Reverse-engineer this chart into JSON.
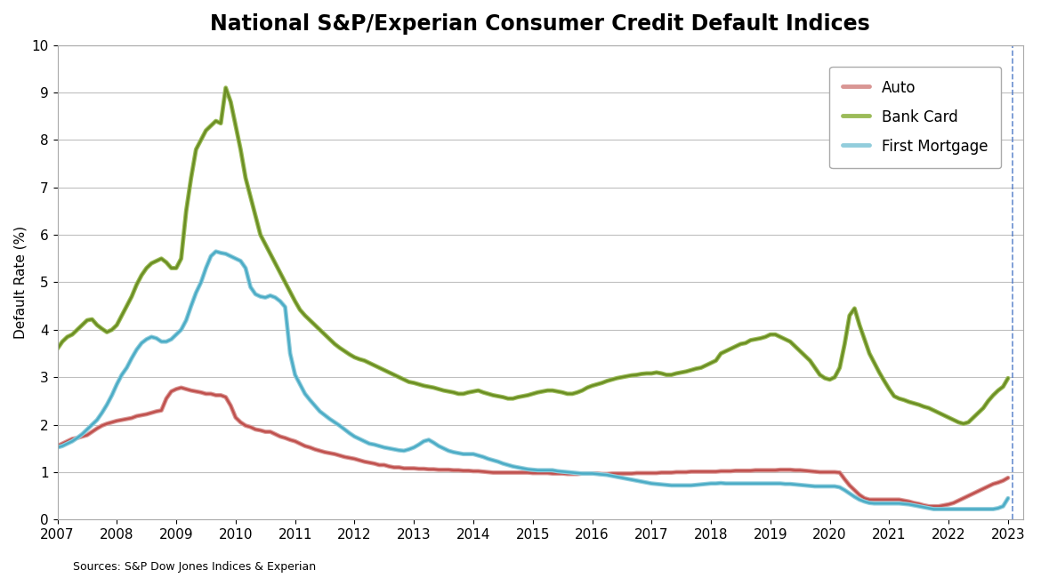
{
  "title": "National S&P/Experian Consumer Credit Default Indices",
  "ylabel": "Default Rate (%)",
  "source": "Sources: S&P Dow Jones Indices & Experian",
  "ylim": [
    0,
    10
  ],
  "yticks": [
    0,
    1,
    2,
    3,
    4,
    5,
    6,
    7,
    8,
    9,
    10
  ],
  "xlim_start": 2007.0,
  "xlim_end": 2023.25,
  "dashed_line_x": 2023.083,
  "auto_color": "#c0504d",
  "auto_color_light": "#d99694",
  "bankcard_color": "#6b8e23",
  "bankcard_color_light": "#9bbb59",
  "mortgage_color": "#4bacc6",
  "mortgage_color_light": "#92cddc",
  "background_color": "#ffffff",
  "plot_bg_color": "#ffffff",
  "grid_color": "#bfbfbf",
  "title_fontsize": 17,
  "label_fontsize": 11,
  "tick_fontsize": 11,
  "auto": {
    "x": [
      2007.0,
      2007.083,
      2007.167,
      2007.25,
      2007.333,
      2007.417,
      2007.5,
      2007.583,
      2007.667,
      2007.75,
      2007.833,
      2007.917,
      2008.0,
      2008.083,
      2008.167,
      2008.25,
      2008.333,
      2008.417,
      2008.5,
      2008.583,
      2008.667,
      2008.75,
      2008.833,
      2008.917,
      2009.0,
      2009.083,
      2009.167,
      2009.25,
      2009.333,
      2009.417,
      2009.5,
      2009.583,
      2009.667,
      2009.75,
      2009.833,
      2009.917,
      2010.0,
      2010.083,
      2010.167,
      2010.25,
      2010.333,
      2010.417,
      2010.5,
      2010.583,
      2010.667,
      2010.75,
      2010.833,
      2010.917,
      2011.0,
      2011.083,
      2011.167,
      2011.25,
      2011.333,
      2011.417,
      2011.5,
      2011.583,
      2011.667,
      2011.75,
      2011.833,
      2011.917,
      2012.0,
      2012.083,
      2012.167,
      2012.25,
      2012.333,
      2012.417,
      2012.5,
      2012.583,
      2012.667,
      2012.75,
      2012.833,
      2012.917,
      2013.0,
      2013.083,
      2013.167,
      2013.25,
      2013.333,
      2013.417,
      2013.5,
      2013.583,
      2013.667,
      2013.75,
      2013.833,
      2013.917,
      2014.0,
      2014.083,
      2014.167,
      2014.25,
      2014.333,
      2014.417,
      2014.5,
      2014.583,
      2014.667,
      2014.75,
      2014.833,
      2014.917,
      2015.0,
      2015.083,
      2015.167,
      2015.25,
      2015.333,
      2015.417,
      2015.5,
      2015.583,
      2015.667,
      2015.75,
      2015.833,
      2015.917,
      2016.0,
      2016.083,
      2016.167,
      2016.25,
      2016.333,
      2016.417,
      2016.5,
      2016.583,
      2016.667,
      2016.75,
      2016.833,
      2016.917,
      2017.0,
      2017.083,
      2017.167,
      2017.25,
      2017.333,
      2017.417,
      2017.5,
      2017.583,
      2017.667,
      2017.75,
      2017.833,
      2017.917,
      2018.0,
      2018.083,
      2018.167,
      2018.25,
      2018.333,
      2018.417,
      2018.5,
      2018.583,
      2018.667,
      2018.75,
      2018.833,
      2018.917,
      2019.0,
      2019.083,
      2019.167,
      2019.25,
      2019.333,
      2019.417,
      2019.5,
      2019.583,
      2019.667,
      2019.75,
      2019.833,
      2019.917,
      2020.0,
      2020.083,
      2020.167,
      2020.25,
      2020.333,
      2020.417,
      2020.5,
      2020.583,
      2020.667,
      2020.75,
      2020.833,
      2020.917,
      2021.0,
      2021.083,
      2021.167,
      2021.25,
      2021.333,
      2021.417,
      2021.5,
      2021.583,
      2021.667,
      2021.75,
      2021.833,
      2021.917,
      2022.0,
      2022.083,
      2022.167,
      2022.25,
      2022.333,
      2022.417,
      2022.5,
      2022.583,
      2022.667,
      2022.75,
      2022.833,
      2022.917,
      2023.0
    ],
    "y": [
      1.55,
      1.6,
      1.65,
      1.7,
      1.72,
      1.75,
      1.78,
      1.85,
      1.92,
      1.98,
      2.02,
      2.05,
      2.08,
      2.1,
      2.12,
      2.14,
      2.18,
      2.2,
      2.22,
      2.25,
      2.28,
      2.3,
      2.55,
      2.7,
      2.75,
      2.78,
      2.75,
      2.72,
      2.7,
      2.68,
      2.65,
      2.65,
      2.62,
      2.62,
      2.58,
      2.4,
      2.15,
      2.05,
      1.98,
      1.95,
      1.9,
      1.88,
      1.85,
      1.85,
      1.8,
      1.75,
      1.72,
      1.68,
      1.65,
      1.6,
      1.55,
      1.52,
      1.48,
      1.45,
      1.42,
      1.4,
      1.38,
      1.35,
      1.32,
      1.3,
      1.28,
      1.25,
      1.22,
      1.2,
      1.18,
      1.15,
      1.15,
      1.12,
      1.1,
      1.1,
      1.08,
      1.08,
      1.08,
      1.07,
      1.07,
      1.06,
      1.06,
      1.05,
      1.05,
      1.05,
      1.04,
      1.04,
      1.03,
      1.03,
      1.02,
      1.02,
      1.01,
      1.0,
      0.99,
      0.99,
      0.99,
      0.99,
      0.99,
      0.99,
      0.99,
      0.99,
      0.98,
      0.98,
      0.98,
      0.98,
      0.97,
      0.97,
      0.97,
      0.96,
      0.96,
      0.96,
      0.97,
      0.97,
      0.97,
      0.97,
      0.96,
      0.96,
      0.97,
      0.97,
      0.97,
      0.97,
      0.97,
      0.98,
      0.98,
      0.98,
      0.98,
      0.98,
      0.99,
      0.99,
      0.99,
      1.0,
      1.0,
      1.0,
      1.01,
      1.01,
      1.01,
      1.01,
      1.01,
      1.01,
      1.02,
      1.02,
      1.02,
      1.03,
      1.03,
      1.03,
      1.03,
      1.04,
      1.04,
      1.04,
      1.04,
      1.04,
      1.05,
      1.05,
      1.05,
      1.04,
      1.04,
      1.03,
      1.02,
      1.01,
      1.0,
      1.0,
      1.0,
      1.0,
      0.99,
      0.85,
      0.72,
      0.62,
      0.52,
      0.45,
      0.42,
      0.42,
      0.42,
      0.42,
      0.42,
      0.42,
      0.42,
      0.4,
      0.38,
      0.35,
      0.33,
      0.3,
      0.28,
      0.28,
      0.28,
      0.3,
      0.32,
      0.35,
      0.4,
      0.45,
      0.5,
      0.55,
      0.6,
      0.65,
      0.7,
      0.75,
      0.78,
      0.82,
      0.88
    ]
  },
  "bankcard": {
    "x": [
      2007.0,
      2007.083,
      2007.167,
      2007.25,
      2007.333,
      2007.417,
      2007.5,
      2007.583,
      2007.667,
      2007.75,
      2007.833,
      2007.917,
      2008.0,
      2008.083,
      2008.167,
      2008.25,
      2008.333,
      2008.417,
      2008.5,
      2008.583,
      2008.667,
      2008.75,
      2008.833,
      2008.917,
      2009.0,
      2009.083,
      2009.167,
      2009.25,
      2009.333,
      2009.417,
      2009.5,
      2009.583,
      2009.667,
      2009.75,
      2009.833,
      2009.917,
      2010.0,
      2010.083,
      2010.167,
      2010.25,
      2010.333,
      2010.417,
      2010.5,
      2010.583,
      2010.667,
      2010.75,
      2010.833,
      2010.917,
      2011.0,
      2011.083,
      2011.167,
      2011.25,
      2011.333,
      2011.417,
      2011.5,
      2011.583,
      2011.667,
      2011.75,
      2011.833,
      2011.917,
      2012.0,
      2012.083,
      2012.167,
      2012.25,
      2012.333,
      2012.417,
      2012.5,
      2012.583,
      2012.667,
      2012.75,
      2012.833,
      2012.917,
      2013.0,
      2013.083,
      2013.167,
      2013.25,
      2013.333,
      2013.417,
      2013.5,
      2013.583,
      2013.667,
      2013.75,
      2013.833,
      2013.917,
      2014.0,
      2014.083,
      2014.167,
      2014.25,
      2014.333,
      2014.417,
      2014.5,
      2014.583,
      2014.667,
      2014.75,
      2014.833,
      2014.917,
      2015.0,
      2015.083,
      2015.167,
      2015.25,
      2015.333,
      2015.417,
      2015.5,
      2015.583,
      2015.667,
      2015.75,
      2015.833,
      2015.917,
      2016.0,
      2016.083,
      2016.167,
      2016.25,
      2016.333,
      2016.417,
      2016.5,
      2016.583,
      2016.667,
      2016.75,
      2016.833,
      2016.917,
      2017.0,
      2017.083,
      2017.167,
      2017.25,
      2017.333,
      2017.417,
      2017.5,
      2017.583,
      2017.667,
      2017.75,
      2017.833,
      2017.917,
      2018.0,
      2018.083,
      2018.167,
      2018.25,
      2018.333,
      2018.417,
      2018.5,
      2018.583,
      2018.667,
      2018.75,
      2018.833,
      2018.917,
      2019.0,
      2019.083,
      2019.167,
      2019.25,
      2019.333,
      2019.417,
      2019.5,
      2019.583,
      2019.667,
      2019.75,
      2019.833,
      2019.917,
      2020.0,
      2020.083,
      2020.167,
      2020.25,
      2020.333,
      2020.417,
      2020.5,
      2020.583,
      2020.667,
      2020.75,
      2020.833,
      2020.917,
      2021.0,
      2021.083,
      2021.167,
      2021.25,
      2021.333,
      2021.417,
      2021.5,
      2021.583,
      2021.667,
      2021.75,
      2021.833,
      2021.917,
      2022.0,
      2022.083,
      2022.167,
      2022.25,
      2022.333,
      2022.417,
      2022.5,
      2022.583,
      2022.667,
      2022.75,
      2022.833,
      2022.917,
      2023.0
    ],
    "y": [
      3.6,
      3.75,
      3.85,
      3.9,
      4.0,
      4.1,
      4.2,
      4.22,
      4.1,
      4.02,
      3.95,
      4.0,
      4.1,
      4.3,
      4.5,
      4.7,
      4.95,
      5.15,
      5.3,
      5.4,
      5.45,
      5.5,
      5.42,
      5.3,
      5.3,
      5.5,
      6.5,
      7.2,
      7.8,
      8.0,
      8.2,
      8.3,
      8.4,
      8.35,
      9.1,
      8.8,
      8.3,
      7.8,
      7.2,
      6.8,
      6.4,
      6.0,
      5.8,
      5.6,
      5.4,
      5.2,
      5.0,
      4.8,
      4.6,
      4.42,
      4.3,
      4.2,
      4.1,
      4.0,
      3.9,
      3.8,
      3.7,
      3.62,
      3.55,
      3.48,
      3.42,
      3.38,
      3.35,
      3.3,
      3.25,
      3.2,
      3.15,
      3.1,
      3.05,
      3.0,
      2.95,
      2.9,
      2.88,
      2.85,
      2.82,
      2.8,
      2.78,
      2.75,
      2.72,
      2.7,
      2.68,
      2.65,
      2.65,
      2.68,
      2.7,
      2.72,
      2.68,
      2.65,
      2.62,
      2.6,
      2.58,
      2.55,
      2.55,
      2.58,
      2.6,
      2.62,
      2.65,
      2.68,
      2.7,
      2.72,
      2.72,
      2.7,
      2.68,
      2.65,
      2.65,
      2.68,
      2.72,
      2.78,
      2.82,
      2.85,
      2.88,
      2.92,
      2.95,
      2.98,
      3.0,
      3.02,
      3.04,
      3.05,
      3.07,
      3.08,
      3.08,
      3.1,
      3.08,
      3.05,
      3.05,
      3.08,
      3.1,
      3.12,
      3.15,
      3.18,
      3.2,
      3.25,
      3.3,
      3.35,
      3.5,
      3.55,
      3.6,
      3.65,
      3.7,
      3.72,
      3.78,
      3.8,
      3.82,
      3.85,
      3.9,
      3.9,
      3.85,
      3.8,
      3.75,
      3.65,
      3.55,
      3.45,
      3.35,
      3.2,
      3.05,
      2.98,
      2.95,
      3.0,
      3.2,
      3.7,
      4.3,
      4.45,
      4.1,
      3.8,
      3.5,
      3.3,
      3.1,
      2.92,
      2.75,
      2.6,
      2.55,
      2.52,
      2.48,
      2.45,
      2.42,
      2.38,
      2.35,
      2.3,
      2.25,
      2.2,
      2.15,
      2.1,
      2.05,
      2.02,
      2.05,
      2.15,
      2.25,
      2.35,
      2.5,
      2.62,
      2.72,
      2.8,
      2.98
    ]
  },
  "mortgage": {
    "x": [
      2007.0,
      2007.083,
      2007.167,
      2007.25,
      2007.333,
      2007.417,
      2007.5,
      2007.583,
      2007.667,
      2007.75,
      2007.833,
      2007.917,
      2008.0,
      2008.083,
      2008.167,
      2008.25,
      2008.333,
      2008.417,
      2008.5,
      2008.583,
      2008.667,
      2008.75,
      2008.833,
      2008.917,
      2009.0,
      2009.083,
      2009.167,
      2009.25,
      2009.333,
      2009.417,
      2009.5,
      2009.583,
      2009.667,
      2009.75,
      2009.833,
      2009.917,
      2010.0,
      2010.083,
      2010.167,
      2010.25,
      2010.333,
      2010.417,
      2010.5,
      2010.583,
      2010.667,
      2010.75,
      2010.833,
      2010.917,
      2011.0,
      2011.083,
      2011.167,
      2011.25,
      2011.333,
      2011.417,
      2011.5,
      2011.583,
      2011.667,
      2011.75,
      2011.833,
      2011.917,
      2012.0,
      2012.083,
      2012.167,
      2012.25,
      2012.333,
      2012.417,
      2012.5,
      2012.583,
      2012.667,
      2012.75,
      2012.833,
      2012.917,
      2013.0,
      2013.083,
      2013.167,
      2013.25,
      2013.333,
      2013.417,
      2013.5,
      2013.583,
      2013.667,
      2013.75,
      2013.833,
      2013.917,
      2014.0,
      2014.083,
      2014.167,
      2014.25,
      2014.333,
      2014.417,
      2014.5,
      2014.583,
      2014.667,
      2014.75,
      2014.833,
      2014.917,
      2015.0,
      2015.083,
      2015.167,
      2015.25,
      2015.333,
      2015.417,
      2015.5,
      2015.583,
      2015.667,
      2015.75,
      2015.833,
      2015.917,
      2016.0,
      2016.083,
      2016.167,
      2016.25,
      2016.333,
      2016.417,
      2016.5,
      2016.583,
      2016.667,
      2016.75,
      2016.833,
      2016.917,
      2017.0,
      2017.083,
      2017.167,
      2017.25,
      2017.333,
      2017.417,
      2017.5,
      2017.583,
      2017.667,
      2017.75,
      2017.833,
      2017.917,
      2018.0,
      2018.083,
      2018.167,
      2018.25,
      2018.333,
      2018.417,
      2018.5,
      2018.583,
      2018.667,
      2018.75,
      2018.833,
      2018.917,
      2019.0,
      2019.083,
      2019.167,
      2019.25,
      2019.333,
      2019.417,
      2019.5,
      2019.583,
      2019.667,
      2019.75,
      2019.833,
      2019.917,
      2020.0,
      2020.083,
      2020.167,
      2020.25,
      2020.333,
      2020.417,
      2020.5,
      2020.583,
      2020.667,
      2020.75,
      2020.833,
      2020.917,
      2021.0,
      2021.083,
      2021.167,
      2021.25,
      2021.333,
      2021.417,
      2021.5,
      2021.583,
      2021.667,
      2021.75,
      2021.833,
      2021.917,
      2022.0,
      2022.083,
      2022.167,
      2022.25,
      2022.333,
      2022.417,
      2022.5,
      2022.583,
      2022.667,
      2022.75,
      2022.833,
      2022.917,
      2023.0
    ],
    "y": [
      1.52,
      1.55,
      1.6,
      1.65,
      1.72,
      1.8,
      1.9,
      2.0,
      2.1,
      2.25,
      2.42,
      2.62,
      2.85,
      3.05,
      3.2,
      3.4,
      3.58,
      3.72,
      3.8,
      3.85,
      3.82,
      3.75,
      3.75,
      3.8,
      3.9,
      4.0,
      4.2,
      4.5,
      4.78,
      5.0,
      5.3,
      5.55,
      5.65,
      5.62,
      5.6,
      5.55,
      5.5,
      5.45,
      5.3,
      4.9,
      4.75,
      4.7,
      4.68,
      4.72,
      4.68,
      4.6,
      4.48,
      3.5,
      3.05,
      2.85,
      2.65,
      2.52,
      2.4,
      2.28,
      2.2,
      2.12,
      2.05,
      1.98,
      1.9,
      1.82,
      1.75,
      1.7,
      1.65,
      1.6,
      1.58,
      1.55,
      1.52,
      1.5,
      1.48,
      1.46,
      1.45,
      1.48,
      1.52,
      1.58,
      1.65,
      1.68,
      1.62,
      1.55,
      1.5,
      1.45,
      1.42,
      1.4,
      1.38,
      1.38,
      1.38,
      1.35,
      1.32,
      1.28,
      1.25,
      1.22,
      1.18,
      1.15,
      1.12,
      1.1,
      1.08,
      1.06,
      1.05,
      1.04,
      1.04,
      1.04,
      1.04,
      1.02,
      1.01,
      1.0,
      0.99,
      0.98,
      0.97,
      0.97,
      0.97,
      0.96,
      0.95,
      0.94,
      0.92,
      0.9,
      0.88,
      0.86,
      0.84,
      0.82,
      0.8,
      0.78,
      0.76,
      0.75,
      0.74,
      0.73,
      0.72,
      0.72,
      0.72,
      0.72,
      0.72,
      0.73,
      0.74,
      0.75,
      0.76,
      0.76,
      0.77,
      0.76,
      0.76,
      0.76,
      0.76,
      0.76,
      0.76,
      0.76,
      0.76,
      0.76,
      0.76,
      0.76,
      0.76,
      0.75,
      0.75,
      0.74,
      0.73,
      0.72,
      0.71,
      0.7,
      0.7,
      0.7,
      0.7,
      0.7,
      0.68,
      0.62,
      0.55,
      0.48,
      0.42,
      0.38,
      0.35,
      0.34,
      0.34,
      0.34,
      0.34,
      0.34,
      0.34,
      0.33,
      0.32,
      0.3,
      0.28,
      0.26,
      0.24,
      0.22,
      0.22,
      0.22,
      0.22,
      0.22,
      0.22,
      0.22,
      0.22,
      0.22,
      0.22,
      0.22,
      0.22,
      0.22,
      0.24,
      0.28,
      0.45
    ]
  }
}
